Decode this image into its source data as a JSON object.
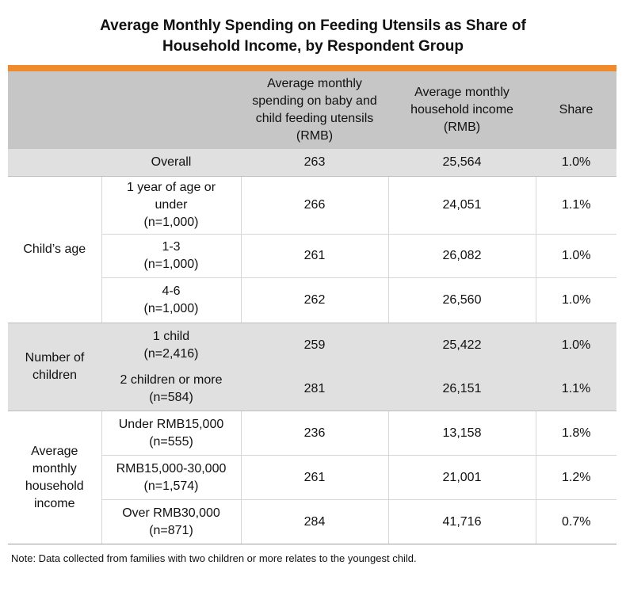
{
  "title": {
    "line1": "Average Monthly Spending on Feeding Utensils as Share of",
    "line2": "Household Income, by Respondent Group"
  },
  "colors": {
    "accent": "#f08a2c",
    "header_bg": "#c6c6c6",
    "band_bg": "#e0e0e0"
  },
  "headers": {
    "spending": "Average monthly spending on baby and child feeding utensils (RMB)",
    "income": "Average monthly household income (RMB)",
    "share": "Share"
  },
  "chart_data": {
    "type": "table",
    "columns": [
      "Average monthly spending on baby and child feeding utensils (RMB)",
      "Average monthly household income (RMB)",
      "Share"
    ],
    "rows": [
      {
        "group": "",
        "label": "Overall",
        "n": "",
        "spending": "263",
        "income": "25,564",
        "share": "1.0%"
      },
      {
        "group": "Child’s age",
        "label": "1 year of age or under",
        "n": "(n=1,000)",
        "spending": "266",
        "income": "24,051",
        "share": "1.1%"
      },
      {
        "group": "Child’s age",
        "label": "1-3",
        "n": "(n=1,000)",
        "spending": "261",
        "income": "26,082",
        "share": "1.0%"
      },
      {
        "group": "Child’s age",
        "label": "4-6",
        "n": "(n=1,000)",
        "spending": "262",
        "income": "26,560",
        "share": "1.0%"
      },
      {
        "group": "Number of children",
        "label": "1 child",
        "n": "(n=2,416)",
        "spending": "259",
        "income": "25,422",
        "share": "1.0%"
      },
      {
        "group": "Number of children",
        "label": "2 children or more",
        "n": "(n=584)",
        "spending": "281",
        "income": "26,151",
        "share": "1.1%"
      },
      {
        "group": "Average monthly household income",
        "label": "Under RMB15,000",
        "n": "(n=555)",
        "spending": "236",
        "income": "13,158",
        "share": "1.8%"
      },
      {
        "group": "Average monthly household income",
        "label": "RMB15,000-30,000",
        "n": "(n=1,574)",
        "spending": "261",
        "income": "21,001",
        "share": "1.2%"
      },
      {
        "group": "Average monthly household income",
        "label": "Over RMB30,000",
        "n": "(n=871)",
        "spending": "284",
        "income": "41,716",
        "share": "0.7%"
      }
    ]
  },
  "groups": {
    "age": "Child’s age",
    "children_line1": "Number of",
    "children_line2": "children",
    "income_line1": "Average",
    "income_line2": "monthly",
    "income_line3": "household",
    "income_line4": "income"
  },
  "row_labels": {
    "age1_line1": "1 year of age or",
    "age1_line2": "under"
  },
  "note": "Note: Data collected from families with two children or more relates to the youngest child."
}
